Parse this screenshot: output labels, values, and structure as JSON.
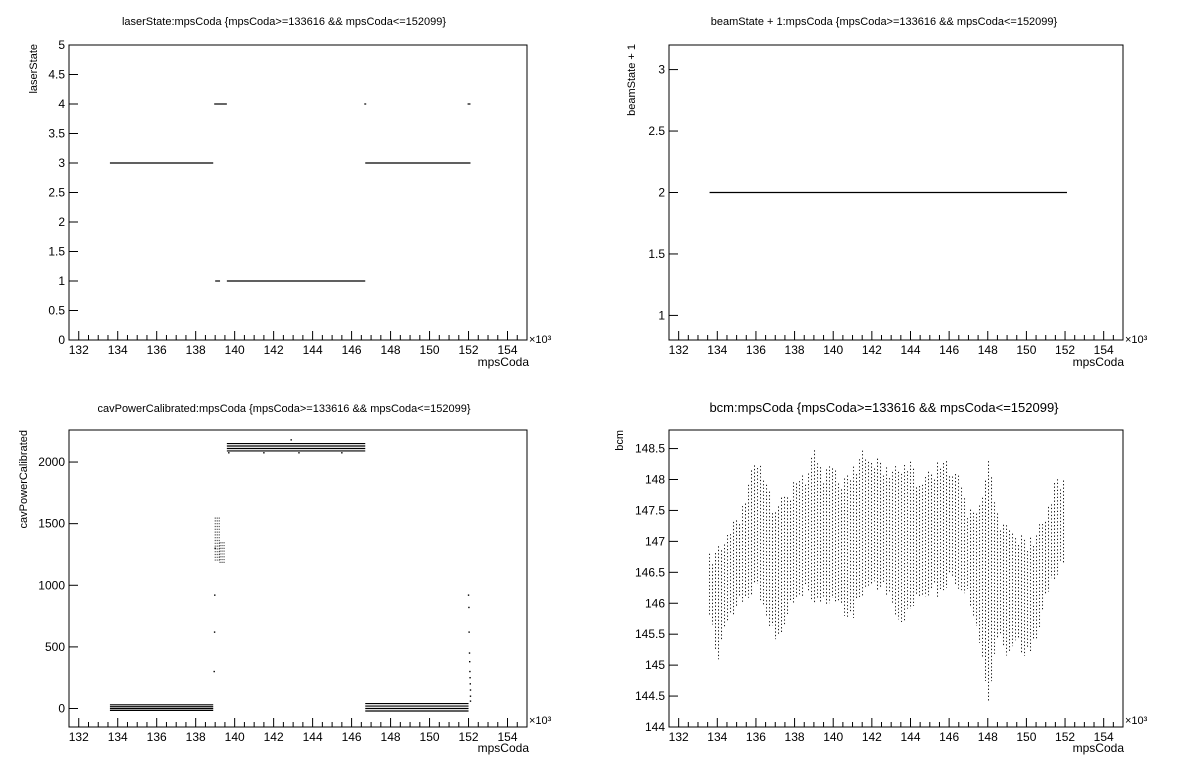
{
  "chart_data": [
    {
      "type": "scatter",
      "title": "laserState:mpsCoda {mpsCoda>=133616 && mpsCoda<=152099}",
      "xlabel": "mpsCoda",
      "ylabel": "laserState",
      "x_multiplier": "×10³",
      "xlim": [
        131.5,
        155
      ],
      "ylim": [
        0,
        5
      ],
      "xticks": [
        132,
        134,
        136,
        138,
        140,
        142,
        144,
        146,
        148,
        150,
        152,
        154
      ],
      "yticks": [
        0,
        0.5,
        1,
        1.5,
        2,
        2.5,
        3,
        3.5,
        4,
        4.5,
        5
      ],
      "ytick_labels": [
        "0",
        "0.5",
        "1",
        "1.5",
        "2",
        "2.5",
        "3",
        "3.5",
        "4",
        "4.5",
        "5"
      ],
      "segments": [
        {
          "x0": 133.6,
          "x1": 138.9,
          "y": 3
        },
        {
          "x0": 138.95,
          "x1": 139.6,
          "y": 4
        },
        {
          "x0": 139.0,
          "x1": 139.25,
          "y": 1
        },
        {
          "x0": 139.6,
          "x1": 146.7,
          "y": 1
        },
        {
          "x0": 146.7,
          "x1": 152.1,
          "y": 3
        },
        {
          "x0": 146.65,
          "x1": 146.75,
          "y": 4
        },
        {
          "x0": 151.95,
          "x1": 152.1,
          "y": 4
        }
      ]
    },
    {
      "type": "scatter",
      "title": "beamState + 1:mpsCoda {mpsCoda>=133616 && mpsCoda<=152099}",
      "xlabel": "mpsCoda",
      "ylabel": "beamState + 1",
      "x_multiplier": "×10³",
      "xlim": [
        131.5,
        155
      ],
      "ylim": [
        0.8,
        3.2
      ],
      "xticks": [
        132,
        134,
        136,
        138,
        140,
        142,
        144,
        146,
        148,
        150,
        152,
        154
      ],
      "yticks": [
        1,
        1.5,
        2,
        2.5,
        3
      ],
      "ytick_labels": [
        "1",
        "1.5",
        "2",
        "2.5",
        "3"
      ],
      "segments": [
        {
          "x0": 133.6,
          "x1": 152.1,
          "y": 2
        }
      ]
    },
    {
      "type": "scatter",
      "title": "cavPowerCalibrated:mpsCoda {mpsCoda>=133616 && mpsCoda<=152099}",
      "xlabel": "mpsCoda",
      "ylabel": "cavPowerCalibrated",
      "x_multiplier": "×10³",
      "xlim": [
        131.5,
        155
      ],
      "ylim": [
        -150,
        2260
      ],
      "xticks": [
        132,
        134,
        136,
        138,
        140,
        142,
        144,
        146,
        148,
        150,
        152,
        154
      ],
      "yticks": [
        0,
        500,
        1000,
        1500,
        2000
      ],
      "ytick_labels": [
        "0",
        "500",
        "1000",
        "1500",
        "2000"
      ],
      "segments": [
        {
          "x0": 133.6,
          "x1": 138.9,
          "y": 30
        },
        {
          "x0": 133.6,
          "x1": 138.9,
          "y": 15
        },
        {
          "x0": 133.6,
          "x1": 138.9,
          "y": 0
        },
        {
          "x0": 133.6,
          "x1": 138.9,
          "y": -15
        },
        {
          "x0": 139.6,
          "x1": 146.7,
          "y": 2150
        },
        {
          "x0": 139.6,
          "x1": 146.7,
          "y": 2130
        },
        {
          "x0": 139.6,
          "x1": 146.7,
          "y": 2110
        },
        {
          "x0": 139.6,
          "x1": 146.7,
          "y": 2090
        },
        {
          "x0": 146.7,
          "x1": 152.0,
          "y": 40
        },
        {
          "x0": 146.7,
          "x1": 152.0,
          "y": 20
        },
        {
          "x0": 146.7,
          "x1": 152.0,
          "y": 0
        },
        {
          "x0": 146.7,
          "x1": 152.0,
          "y": -20
        }
      ],
      "bands": [
        {
          "x0": 139.0,
          "x1": 139.25,
          "y0": 1200,
          "y1": 1550
        },
        {
          "x0": 139.25,
          "x1": 139.55,
          "y0": 1180,
          "y1": 1350
        }
      ],
      "points": [
        [
          138.95,
          300
        ],
        [
          138.97,
          620
        ],
        [
          138.98,
          920
        ],
        [
          139.0,
          1300
        ],
        [
          152.0,
          920
        ],
        [
          152.02,
          820
        ],
        [
          152.03,
          620
        ],
        [
          152.05,
          450
        ],
        [
          152.06,
          380
        ],
        [
          152.07,
          300
        ],
        [
          152.08,
          250
        ],
        [
          152.09,
          200
        ],
        [
          152.1,
          150
        ],
        [
          152.1,
          100
        ],
        [
          152.1,
          60
        ],
        [
          142.9,
          2180
        ],
        [
          139.7,
          2075
        ],
        [
          141.5,
          2075
        ],
        [
          143.3,
          2075
        ],
        [
          145.5,
          2075
        ]
      ]
    },
    {
      "type": "scatter",
      "title": "bcm:mpsCoda {mpsCoda>=133616 && mpsCoda<=152099}",
      "xlabel": "mpsCoda",
      "ylabel": "bcm",
      "x_multiplier": "×10³",
      "xlim": [
        131.5,
        155
      ],
      "ylim": [
        144,
        148.8
      ],
      "xticks": [
        132,
        134,
        136,
        138,
        140,
        142,
        144,
        146,
        148,
        150,
        152,
        154
      ],
      "yticks": [
        144,
        144.5,
        145,
        145.5,
        146,
        146.5,
        147,
        147.5,
        148,
        148.5
      ],
      "ytick_labels": [
        "144",
        "144.5",
        "145",
        "145.5",
        "146",
        "146.5",
        "147",
        "147.5",
        "148",
        "148.5"
      ],
      "envelope": {
        "x": [
          133.6,
          134.0,
          134.5,
          135.0,
          135.5,
          136.0,
          136.5,
          137.0,
          137.5,
          138.0,
          138.5,
          139.0,
          139.5,
          140.0,
          140.5,
          141.0,
          141.5,
          142.0,
          142.5,
          143.0,
          143.5,
          144.0,
          144.5,
          145.0,
          145.5,
          146.0,
          146.5,
          147.0,
          147.5,
          148.0,
          148.5,
          149.0,
          149.5,
          150.0,
          150.5,
          151.0,
          151.5,
          152.0
        ],
        "high": [
          146.8,
          146.9,
          147.2,
          147.4,
          147.8,
          148.5,
          148.0,
          147.6,
          147.8,
          148.0,
          148.1,
          148.5,
          148.2,
          148.3,
          148.0,
          148.2,
          148.5,
          148.4,
          148.3,
          148.2,
          148.3,
          148.3,
          148.0,
          148.2,
          148.3,
          148.3,
          148.1,
          147.6,
          147.5,
          148.4,
          147.5,
          147.3,
          147.2,
          147.0,
          147.2,
          147.5,
          148.0,
          148.1
        ],
        "low": [
          145.8,
          145.0,
          145.6,
          145.9,
          146.0,
          146.2,
          145.8,
          145.3,
          145.6,
          146.0,
          146.1,
          146.0,
          145.9,
          146.0,
          145.8,
          145.7,
          146.1,
          146.2,
          146.2,
          146.0,
          145.5,
          145.9,
          146.0,
          146.1,
          146.1,
          146.3,
          146.2,
          146.0,
          145.5,
          144.3,
          145.4,
          145.1,
          145.3,
          145.1,
          145.3,
          146.0,
          146.4,
          146.6
        ]
      }
    }
  ]
}
